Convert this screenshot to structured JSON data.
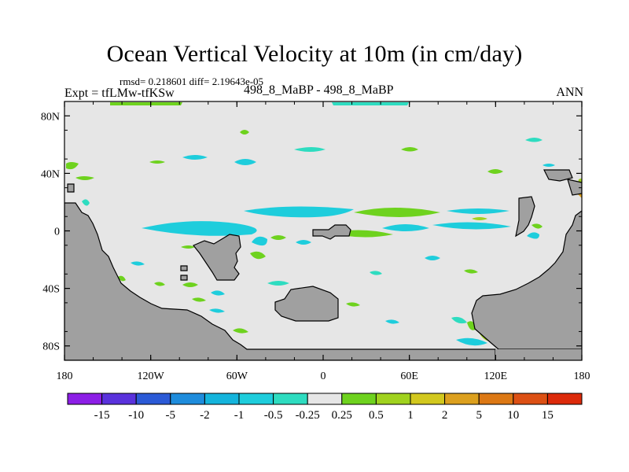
{
  "chart_data": {
    "type": "heatmap",
    "title": "Ocean Vertical Velocity at 10m (in cm/day)",
    "stats": "rmsd= 0.218601 diff= 2.19643e-05",
    "experiment": "Expt = tfLMw-tfKSw",
    "cases": "498_8_MaBP - 498_8_MaBP",
    "season": "ANN",
    "xlim": [
      -180,
      180
    ],
    "ylim": [
      -90,
      90
    ],
    "x_ticks": [
      {
        "value": -180,
        "label": "180"
      },
      {
        "value": -120,
        "label": "120W"
      },
      {
        "value": -60,
        "label": "60W"
      },
      {
        "value": 0,
        "label": "0"
      },
      {
        "value": 60,
        "label": "60E"
      },
      {
        "value": 120,
        "label": "120E"
      },
      {
        "value": 180,
        "label": "180"
      }
    ],
    "y_ticks": [
      {
        "value": 80,
        "label": "80N"
      },
      {
        "value": 40,
        "label": "40N"
      },
      {
        "value": 0,
        "label": "0"
      },
      {
        "value": -40,
        "label": "40S"
      },
      {
        "value": -80,
        "label": "80S"
      }
    ],
    "colorbar": {
      "labels": [
        "-15",
        "-10",
        "-5",
        "-2",
        "-1",
        "-0.5",
        "-0.25",
        "0.25",
        "0.5",
        "1",
        "2",
        "5",
        "10",
        "15"
      ],
      "colors": [
        "#8c1ee6",
        "#5a32dc",
        "#2b5ad6",
        "#1e8cdc",
        "#14b4dc",
        "#1ecddc",
        "#2edcc0",
        "#e6e6e6",
        "#6ed21e",
        "#a0d21e",
        "#d2c81e",
        "#dca01e",
        "#dc7814",
        "#dc5014",
        "#dc2a0a"
      ]
    },
    "colors": {
      "land": "#a0a0a0",
      "ocean_background": "#e6e6e6"
    }
  }
}
